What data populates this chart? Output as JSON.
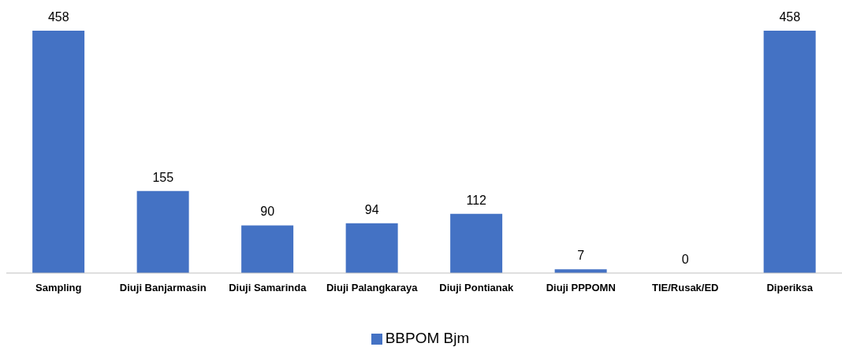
{
  "chart_data": {
    "type": "bar",
    "categories": [
      "Sampling",
      "Diuji Banjarmasin",
      "Diuji Samarinda",
      "Diuji Palangkaraya",
      "Diuji Pontianak",
      "Diuji PPPOMN",
      "TIE/Rusak/ED",
      "Diperiksa"
    ],
    "series": [
      {
        "name": "BBPOM Bjm",
        "color": "#4472c4",
        "values": [
          458,
          155,
          90,
          94,
          112,
          7,
          0,
          458
        ]
      }
    ],
    "data_labels": true,
    "legend": "bottom",
    "grid": false
  }
}
